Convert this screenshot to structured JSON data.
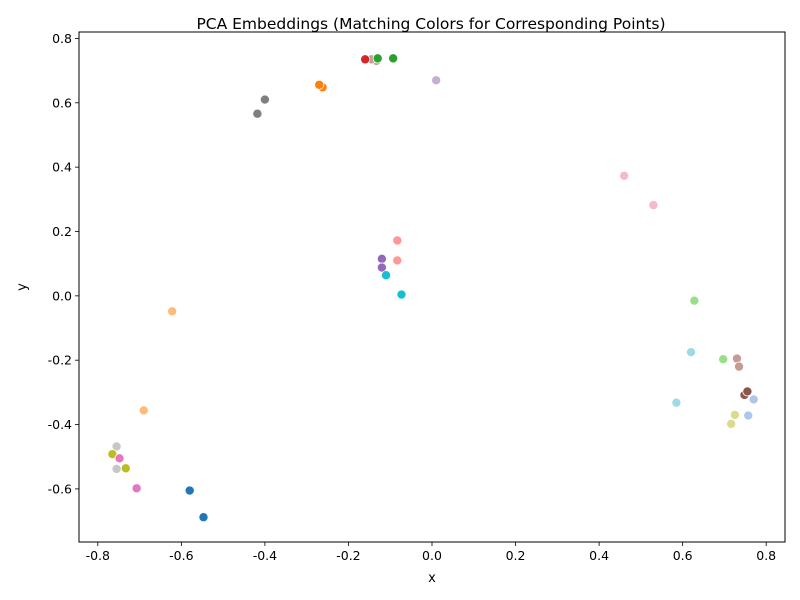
{
  "chart_data": {
    "type": "scatter",
    "title": "PCA Embeddings (Matching Colors for Corresponding Points)",
    "xlabel": "x",
    "ylabel": "y",
    "xlim": [
      -0.845,
      0.845
    ],
    "ylim": [
      -0.765,
      0.82
    ],
    "xticks": [
      -0.8,
      -0.6,
      -0.4,
      -0.2,
      0.0,
      0.2,
      0.4,
      0.6,
      0.8
    ],
    "yticks": [
      -0.6,
      -0.4,
      -0.2,
      0.0,
      0.2,
      0.4,
      0.6,
      0.8
    ],
    "grid": false,
    "points": [
      {
        "x": 0.01,
        "y": 0.67,
        "color": "#c5b0d5"
      },
      {
        "x": -0.133,
        "y": 0.73,
        "color": "#c49c94"
      },
      {
        "x": -0.145,
        "y": 0.735,
        "color": "#c49c94"
      },
      {
        "x": -0.16,
        "y": 0.735,
        "color": "#d62728"
      },
      {
        "x": -0.093,
        "y": 0.738,
        "color": "#2ca02c"
      },
      {
        "x": -0.13,
        "y": 0.738,
        "color": "#2ca02c"
      },
      {
        "x": -0.262,
        "y": 0.648,
        "color": "#ff7f0e"
      },
      {
        "x": -0.27,
        "y": 0.656,
        "color": "#ff7f0e"
      },
      {
        "x": -0.4,
        "y": 0.61,
        "color": "#7f7f7f"
      },
      {
        "x": -0.418,
        "y": 0.566,
        "color": "#7f7f7f"
      },
      {
        "x": 0.46,
        "y": 0.373,
        "color": "#f7b6d2"
      },
      {
        "x": 0.53,
        "y": 0.282,
        "color": "#f7b6d2"
      },
      {
        "x": -0.083,
        "y": 0.172,
        "color": "#ff9896"
      },
      {
        "x": -0.083,
        "y": 0.11,
        "color": "#ff9896"
      },
      {
        "x": -0.12,
        "y": 0.115,
        "color": "#9467bd"
      },
      {
        "x": -0.12,
        "y": 0.088,
        "color": "#9467bd"
      },
      {
        "x": -0.11,
        "y": 0.064,
        "color": "#17becf"
      },
      {
        "x": -0.073,
        "y": 0.004,
        "color": "#17becf"
      },
      {
        "x": -0.622,
        "y": -0.048,
        "color": "#ffbb78"
      },
      {
        "x": -0.69,
        "y": -0.356,
        "color": "#ffbb78"
      },
      {
        "x": 0.628,
        "y": -0.015,
        "color": "#98df8a"
      },
      {
        "x": 0.697,
        "y": -0.197,
        "color": "#98df8a"
      },
      {
        "x": 0.62,
        "y": -0.175,
        "color": "#9edae5"
      },
      {
        "x": 0.585,
        "y": -0.332,
        "color": "#9edae5"
      },
      {
        "x": 0.73,
        "y": -0.195,
        "color": "#c49c94"
      },
      {
        "x": 0.735,
        "y": -0.22,
        "color": "#c49c94"
      },
      {
        "x": 0.748,
        "y": -0.308,
        "color": "#8c564b"
      },
      {
        "x": 0.755,
        "y": -0.297,
        "color": "#8c564b"
      },
      {
        "x": 0.77,
        "y": -0.322,
        "color": "#aec7e8"
      },
      {
        "x": 0.757,
        "y": -0.372,
        "color": "#aec7e8"
      },
      {
        "x": 0.725,
        "y": -0.37,
        "color": "#dbdb8d"
      },
      {
        "x": 0.716,
        "y": -0.398,
        "color": "#dbdb8d"
      },
      {
        "x": -0.755,
        "y": -0.468,
        "color": "#c7c7c7"
      },
      {
        "x": -0.755,
        "y": -0.538,
        "color": "#c7c7c7"
      },
      {
        "x": -0.765,
        "y": -0.492,
        "color": "#bcbd22"
      },
      {
        "x": -0.733,
        "y": -0.536,
        "color": "#bcbd22"
      },
      {
        "x": -0.748,
        "y": -0.505,
        "color": "#e377c2"
      },
      {
        "x": -0.707,
        "y": -0.598,
        "color": "#e377c2"
      },
      {
        "x": -0.58,
        "y": -0.605,
        "color": "#1f77b4"
      },
      {
        "x": -0.547,
        "y": -0.688,
        "color": "#1f77b4"
      }
    ]
  }
}
